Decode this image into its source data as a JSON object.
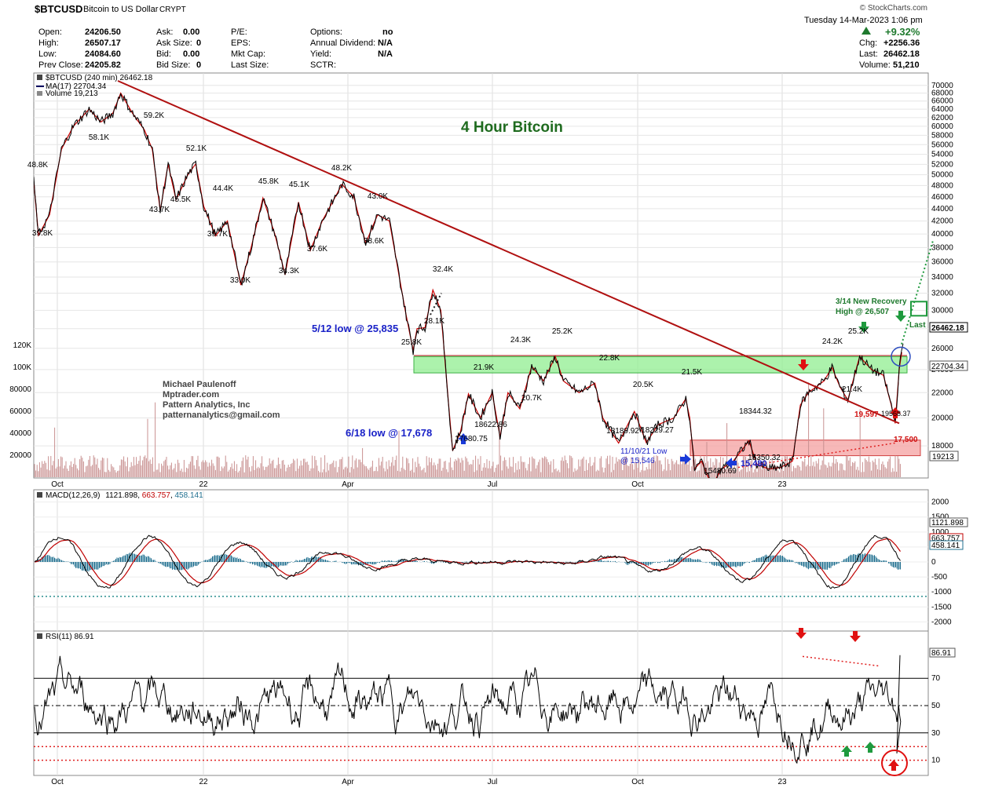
{
  "header": {
    "symbol": "$BTCUSD",
    "name": "Bitcoin to US Dollar",
    "exchange": "CRYPT",
    "brand": "© StockCharts.com",
    "date_line": "Tuesday  14-Mar-2023  1:06 pm"
  },
  "quote": {
    "col1": [
      {
        "label": "Open:",
        "value": "24206.50"
      },
      {
        "label": "High:",
        "value": "26507.17"
      },
      {
        "label": "Low:",
        "value": "24084.60"
      },
      {
        "label": "Prev Close:",
        "value": "24205.82"
      }
    ],
    "col2": [
      {
        "label": "Ask:",
        "value": "0.00"
      },
      {
        "label": "Ask Size:",
        "value": "0"
      },
      {
        "label": "Bid:",
        "value": "0.00"
      },
      {
        "label": "Bid Size:",
        "value": "0"
      }
    ],
    "col3": [
      {
        "label": "P/E:",
        "value": ""
      },
      {
        "label": "EPS:",
        "value": ""
      },
      {
        "label": "Mkt Cap:",
        "value": ""
      },
      {
        "label": "Last Size:",
        "value": ""
      }
    ],
    "col4": [
      {
        "label": "Options:",
        "value": "no"
      },
      {
        "label": "Annual Dividend:",
        "value": "N/A"
      },
      {
        "label": "Yield:",
        "value": "N/A"
      },
      {
        "label": "SCTR:",
        "value": ""
      }
    ],
    "change_pct": "+9.32%",
    "col5": [
      {
        "label": "Chg:",
        "value": "+2256.36"
      },
      {
        "label": "Last:",
        "value": "26462.18"
      },
      {
        "label": "Volume:",
        "value": "51,210"
      }
    ]
  },
  "chart_data": [
    {
      "type": "line",
      "panel": "price",
      "legend": [
        "$BTCUSD (240 min) 26462.18",
        "MA(17) 22704.34",
        "Volume 19,213"
      ],
      "y_ticks": [
        70000,
        68000,
        66000,
        64000,
        62000,
        60000,
        58000,
        56000,
        54000,
        52000,
        50000,
        48000,
        46000,
        44000,
        42000,
        40000,
        38000,
        36000,
        34000,
        32000,
        30000,
        28000,
        26000,
        24000,
        22000,
        20000,
        18000
      ],
      "volume_ticks": [
        "120K",
        "100K",
        "80000",
        "60000",
        "40000",
        "20000"
      ],
      "x_labels": [
        "Oct",
        "22",
        "Apr",
        "Jul",
        "Oct",
        "23"
      ],
      "scale": "log",
      "ylim": [
        16000,
        71000
      ],
      "series": [
        {
          "name": "$BTCUSD (240 min)",
          "color": "#000000",
          "points": [
            [
              0,
              48800
            ],
            [
              6,
              39800
            ],
            [
              20,
              43000
            ],
            [
              35,
              55000
            ],
            [
              50,
              60000
            ],
            [
              70,
              64000
            ],
            [
              85,
              61000
            ],
            [
              100,
              63000
            ],
            [
              110,
              68000
            ],
            [
              125,
              63000
            ],
            [
              140,
              59200
            ],
            [
              150,
              55000
            ],
            [
              160,
              43700
            ],
            [
              170,
              52000
            ],
            [
              180,
              45500
            ],
            [
              195,
              50000
            ],
            [
              205,
              52100
            ],
            [
              215,
              44400
            ],
            [
              230,
              39700
            ],
            [
              245,
              42000
            ],
            [
              262,
              33000
            ],
            [
              275,
              38000
            ],
            [
              290,
              45800
            ],
            [
              305,
              40000
            ],
            [
              318,
              34300
            ],
            [
              335,
              45100
            ],
            [
              350,
              37600
            ],
            [
              365,
              42000
            ],
            [
              390,
              48200
            ],
            [
              405,
              46000
            ],
            [
              420,
              38600
            ],
            [
              435,
              43000
            ],
            [
              450,
              42000
            ],
            [
              470,
              30000
            ],
            [
              480,
              25800
            ],
            [
              485,
              28000
            ],
            [
              495,
              28100
            ],
            [
              505,
              32400
            ],
            [
              515,
              30000
            ],
            [
              525,
              21000
            ],
            [
              530,
              17678
            ],
            [
              540,
              19000
            ],
            [
              550,
              21900
            ],
            [
              565,
              20000
            ],
            [
              580,
              22000
            ],
            [
              590,
              18622
            ],
            [
              600,
              22000
            ],
            [
              615,
              20700
            ],
            [
              630,
              24300
            ],
            [
              645,
              23000
            ],
            [
              660,
              25200
            ],
            [
              670,
              23000
            ],
            [
              690,
              22000
            ],
            [
              710,
              22800
            ],
            [
              720,
              20000
            ],
            [
              740,
              18189
            ],
            [
              760,
              20500
            ],
            [
              775,
              18229
            ],
            [
              790,
              19500
            ],
            [
              810,
              20000
            ],
            [
              825,
              21500
            ],
            [
              830,
              20000
            ],
            [
              836,
              16500
            ],
            [
              845,
              17000
            ],
            [
              858,
              15480
            ],
            [
              870,
              16500
            ],
            [
              885,
              17000
            ],
            [
              905,
              18344
            ],
            [
              915,
              16800
            ],
            [
              930,
              16500
            ],
            [
              945,
              16600
            ],
            [
              960,
              17000
            ],
            [
              970,
              21000
            ],
            [
              980,
              22000
            ],
            [
              1000,
              23000
            ],
            [
              1010,
              24200
            ],
            [
              1020,
              22500
            ],
            [
              1030,
              21400
            ],
            [
              1045,
              25200
            ],
            [
              1060,
              24000
            ],
            [
              1075,
              23500
            ],
            [
              1085,
              21000
            ],
            [
              1090,
              19597
            ],
            [
              1095,
              24000
            ],
            [
              1100,
              26462
            ]
          ]
        },
        {
          "name": "MA(17)",
          "color": "#c00000",
          "value": 22704.34
        }
      ]
    },
    {
      "type": "line",
      "panel": "MACD",
      "legend_label": "MACD(12,26,9)",
      "legend_values": [
        "1121.898",
        "663.757",
        "458.141"
      ],
      "y_ticks": [
        2000,
        1500,
        1000,
        500,
        0,
        -500,
        -1000,
        -1500,
        -2000
      ],
      "last_values": [
        "1121.898",
        "663.757",
        "458.141"
      ]
    },
    {
      "type": "line",
      "panel": "RSI",
      "legend_label": "RSI(11) 86.91",
      "y_ticks": [
        70,
        50,
        30,
        10
      ],
      "last_value": "86.91"
    }
  ],
  "annotations": {
    "title": "4 Hour Bitcoin",
    "author": [
      "Michael Paulenoff",
      "Mptrader.com",
      "Pattern Analytics, Inc",
      "patternanalytics@gmail.com"
    ],
    "low_512": "5/12 low @ 25,835",
    "low_618": "6/18 low @ 17,678",
    "low_1110": "11/10/21 Low",
    "low_1110b": "@ 15,546",
    "recovery_1": "3/14 New Recovery",
    "recovery_2": "High @ 26,507",
    "last_word": "Last",
    "low_15480": "15,480",
    "lbl_19597": "19,597",
    "lbl_19568": "19568.37",
    "lbl_17500": "17,500",
    "last_price": "26462.18",
    "ma_price": "22704.34",
    "vol_last": "19213",
    "peaks": [
      {
        "t": "48.8K"
      },
      {
        "t": "39.8K"
      },
      {
        "t": "58.1K"
      },
      {
        "t": "59.2K"
      },
      {
        "t": "43.7K"
      },
      {
        "t": "45.5K"
      },
      {
        "t": "52.1K"
      },
      {
        "t": "44.4K"
      },
      {
        "t": "39.7K"
      },
      {
        "t": "33.0K"
      },
      {
        "t": "45.8K"
      },
      {
        "t": "34.3K"
      },
      {
        "t": "45.1K"
      },
      {
        "t": "37.6K"
      },
      {
        "t": "48.2K"
      },
      {
        "t": "43.0K"
      },
      {
        "t": "38.6K"
      },
      {
        "t": "32.4K"
      },
      {
        "t": "28.1K"
      },
      {
        "t": "25.8K"
      },
      {
        "t": "21.9K"
      },
      {
        "t": "24.3K"
      },
      {
        "t": "25.2K"
      },
      {
        "t": "20.7K"
      },
      {
        "t": "22.8K"
      },
      {
        "t": "20.5K"
      },
      {
        "t": "21.5K"
      },
      {
        "t": "18622.86"
      },
      {
        "t": "17680.75"
      },
      {
        "t": "18189.92"
      },
      {
        "t": "18229.27"
      },
      {
        "t": "18344.32"
      },
      {
        "t": "15480.69"
      },
      {
        "t": "15350.32"
      },
      {
        "t": "24.2K"
      },
      {
        "t": "25.2K"
      },
      {
        "t": "21.4K"
      }
    ]
  },
  "colors": {
    "price": "#000000",
    "ma": "#cc0000",
    "trend": "#b01010",
    "green_zone": "#90ee90",
    "red_zone": "#f4a0a0",
    "macd_signal": "#1f6f8f"
  }
}
